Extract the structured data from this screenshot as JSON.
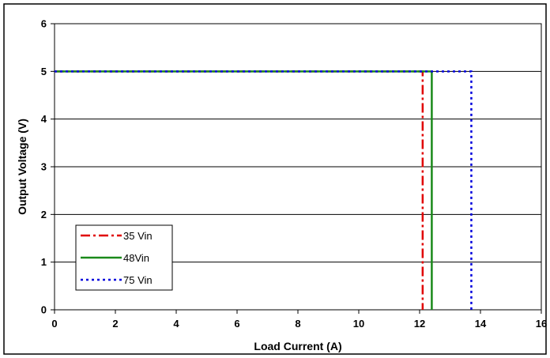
{
  "chart_data": {
    "type": "line",
    "title": "",
    "xlabel": "Load Current (A)",
    "ylabel": "Output Voltage (V)",
    "xlim": [
      0,
      16
    ],
    "ylim": [
      0,
      6
    ],
    "xticks": [
      0,
      2,
      4,
      6,
      8,
      10,
      12,
      14,
      16
    ],
    "yticks": [
      0,
      1,
      2,
      3,
      4,
      5,
      6
    ],
    "grid": "horizontal",
    "legend_position": "bottom-left",
    "series": [
      {
        "name": "35 Vin",
        "color": "#e00000",
        "style": "dash-dot",
        "x": [
          0,
          12.1,
          12.1
        ],
        "y": [
          5,
          5,
          0
        ]
      },
      {
        "name": "48Vin",
        "color": "#1a8a1a",
        "style": "solid",
        "x": [
          0,
          12.4,
          12.4
        ],
        "y": [
          5,
          5,
          0
        ]
      },
      {
        "name": "75 Vin",
        "color": "#0000dd",
        "style": "dotted",
        "x": [
          0,
          13.7,
          13.7
        ],
        "y": [
          5,
          5,
          0
        ]
      }
    ]
  }
}
